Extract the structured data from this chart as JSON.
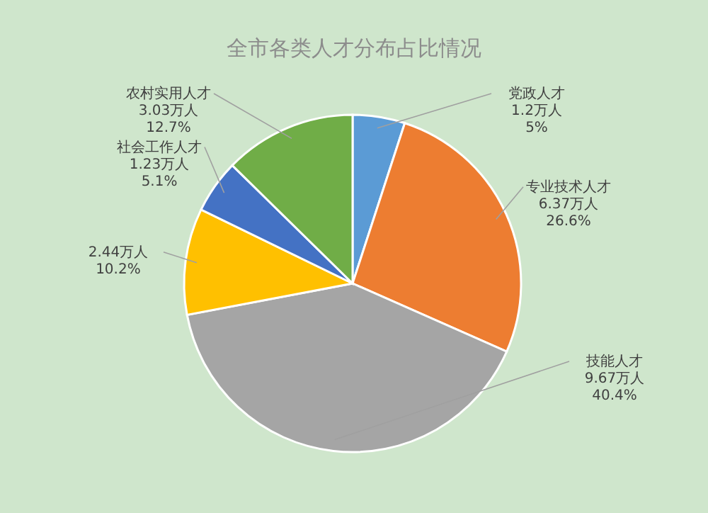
{
  "chart_data": {
    "type": "pie",
    "title": "全市各类人才分布占比情况",
    "categories": [
      "党政人才",
      "专业技术人才",
      "技能人才",
      null,
      "社会工作人才",
      "农村实用人才"
    ],
    "values": [
      1.2,
      6.37,
      9.67,
      2.44,
      1.23,
      3.03
    ],
    "value_labels": [
      "1.2万人\n5%",
      "6.37万人\n26.6%",
      "9.67万人\n40.4%",
      "2.44万人\n10.2%",
      "1.23万人\n5.1%",
      "3.03万人\n12.7%"
    ],
    "colors": [
      "#5b9bd5",
      "#ed7d31",
      "#a5a5a5",
      "#ffc000",
      "#4472c4",
      "#70ad47"
    ]
  }
}
